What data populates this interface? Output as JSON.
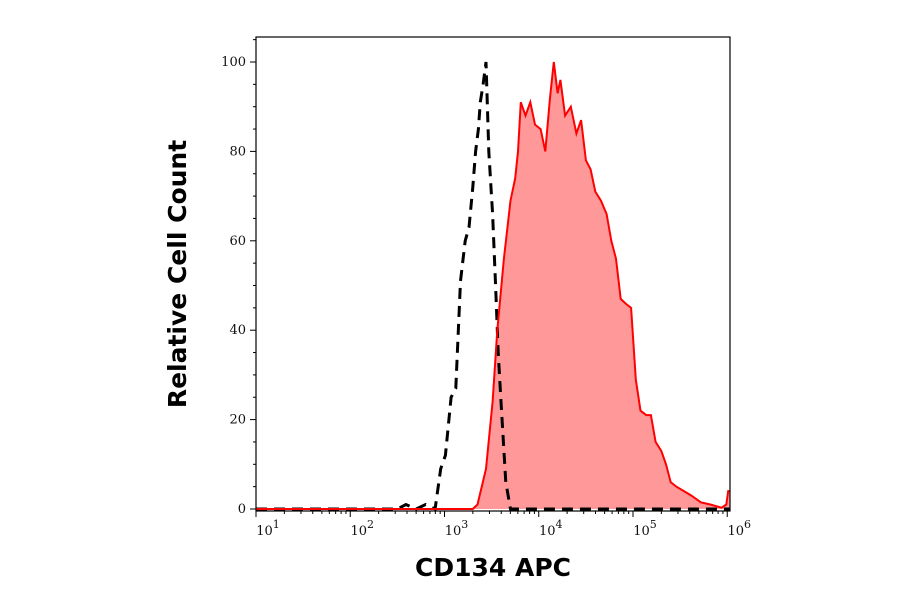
{
  "chart_data": {
    "type": "area",
    "title": "",
    "xlabel": "CD134 APC",
    "ylabel": "Relative Cell Count",
    "x_scale": "log",
    "xlim": [
      10,
      1070000
    ],
    "ylim": [
      0,
      105
    ],
    "x_tick_labels": [
      {
        "base": "10",
        "exp": "1"
      },
      {
        "base": "10",
        "exp": "2"
      },
      {
        "base": "10",
        "exp": "3"
      },
      {
        "base": "10",
        "exp": "4"
      },
      {
        "base": "10",
        "exp": "5"
      },
      {
        "base": "10",
        "exp": "6"
      }
    ],
    "y_ticks": [
      0,
      20,
      40,
      60,
      80,
      100
    ],
    "grid": false,
    "colors": {
      "stained_fill": "#ff9999",
      "stained_line": "#ff0000",
      "control_line": "#000000"
    },
    "series": [
      {
        "style": "filled red solid",
        "x_log10": [
          1.0,
          3.3,
          3.35,
          3.44,
          3.51,
          3.56,
          3.63,
          3.7,
          3.75,
          3.78,
          3.81,
          3.86,
          3.91,
          3.96,
          4.02,
          4.07,
          4.12,
          4.16,
          4.2,
          4.23,
          4.28,
          4.34,
          4.4,
          4.45,
          4.5,
          4.55,
          4.6,
          4.66,
          4.72,
          4.77,
          4.82,
          4.87,
          4.92,
          4.98,
          5.03,
          5.08,
          5.14,
          5.19,
          5.24,
          5.3,
          5.35,
          5.4,
          5.46,
          5.54,
          5.62,
          5.72,
          5.82,
          5.94,
          5.99,
          6.01,
          6.03
        ],
        "y": [
          0,
          0,
          1,
          9,
          24,
          40,
          56,
          69,
          74,
          80,
          91,
          88,
          91,
          86,
          85,
          80,
          92,
          100,
          93,
          96,
          88,
          90,
          84,
          87,
          78,
          76,
          71,
          69,
          66,
          60,
          56,
          47,
          46,
          45,
          29,
          22,
          21,
          21,
          15,
          13,
          10,
          6,
          5,
          4,
          3,
          1.5,
          1,
          0.3,
          1,
          4,
          4
        ]
      },
      {
        "style": "black dashed",
        "x_log10": [
          1.0,
          2.5,
          2.59,
          2.7,
          2.8,
          2.9,
          2.96,
          3.01,
          3.07,
          3.12,
          3.17,
          3.22,
          3.26,
          3.3,
          3.33,
          3.36,
          3.38,
          3.41,
          3.44,
          3.47,
          3.51,
          3.54,
          3.57,
          3.6,
          3.65,
          3.7,
          6.03
        ],
        "y": [
          0,
          0,
          1,
          0,
          1,
          0,
          9,
          12,
          25,
          27,
          51,
          60,
          63,
          72,
          80,
          85,
          91,
          95,
          100,
          80,
          66,
          51,
          35,
          24,
          6,
          0,
          0
        ]
      }
    ]
  }
}
